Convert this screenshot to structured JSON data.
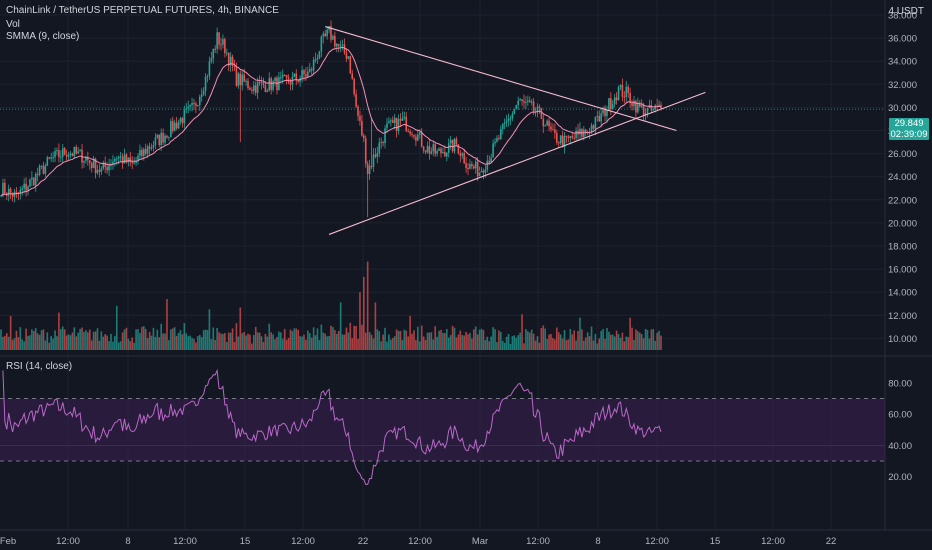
{
  "header": {
    "symbol_title": "ChainLink / TetherUS PERPETUAL FUTURES, 4h, BINANCE",
    "vol_label": "Vol",
    "smma_label": "SMMA (9, close)",
    "currency": "4 USDT",
    "rsi_label": "RSI (14, close)"
  },
  "price_tag": {
    "price": "29.849",
    "countdown": "02:39:09"
  },
  "colors": {
    "background": "#131722",
    "up": "#26a69a",
    "down": "#ef5350",
    "smma": "#f48fb1",
    "trendline": "#f8bbd0",
    "rsi_line": "#ba68c8",
    "rsi_band": "#3b1f52",
    "grid": "#1e222d"
  },
  "chart_data": {
    "type": "candlestick",
    "price_axis": {
      "min": 10,
      "max": 39,
      "ticks": [
        "38.000",
        "36.000",
        "34.000",
        "32.000",
        "30.000",
        "28.000",
        "26.000",
        "24.000",
        "22.000",
        "20.000",
        "18.000",
        "16.000",
        "14.000",
        "12.000",
        "10.000"
      ]
    },
    "time_axis": {
      "ticks": [
        "Feb",
        "12:00",
        "8",
        "12:00",
        "15",
        "12:00",
        "22",
        "12:00",
        "Mar",
        "12:00",
        "8",
        "12:00",
        "15",
        "12:00",
        "22"
      ]
    },
    "price_anchors": [
      [
        0,
        23.0
      ],
      [
        8,
        22.3
      ],
      [
        18,
        24.0
      ],
      [
        26,
        25.5
      ],
      [
        34,
        26.2
      ],
      [
        42,
        25.8
      ],
      [
        52,
        24.5
      ],
      [
        60,
        25.8
      ],
      [
        68,
        25.0
      ],
      [
        76,
        26.5
      ],
      [
        84,
        27.5
      ],
      [
        90,
        28.5
      ],
      [
        100,
        30.0
      ],
      [
        106,
        32.5
      ],
      [
        112,
        36.0
      ],
      [
        116,
        35.2
      ],
      [
        122,
        32.5
      ],
      [
        130,
        31.8
      ],
      [
        140,
        32.0
      ],
      [
        150,
        32.3
      ],
      [
        160,
        33.0
      ],
      [
        166,
        35.5
      ],
      [
        170,
        36.5
      ],
      [
        176,
        35.0
      ],
      [
        180,
        34.5
      ],
      [
        184,
        30.0
      ],
      [
        188,
        27.0
      ],
      [
        190,
        24.5
      ],
      [
        194,
        26.0
      ],
      [
        200,
        28.2
      ],
      [
        208,
        28.8
      ],
      [
        214,
        28.0
      ],
      [
        220,
        26.5
      ],
      [
        226,
        26.0
      ],
      [
        232,
        26.5
      ],
      [
        236,
        26.8
      ],
      [
        242,
        25.0
      ],
      [
        248,
        24.5
      ],
      [
        254,
        26.0
      ],
      [
        260,
        28.0
      ],
      [
        268,
        30.5
      ],
      [
        274,
        30.0
      ],
      [
        280,
        29.2
      ],
      [
        286,
        27.5
      ],
      [
        292,
        27.0
      ],
      [
        298,
        27.5
      ],
      [
        304,
        28.0
      ],
      [
        310,
        29.0
      ],
      [
        316,
        30.5
      ],
      [
        320,
        31.5
      ],
      [
        324,
        31.2
      ],
      [
        330,
        30.0
      ],
      [
        336,
        29.6
      ],
      [
        342,
        30.0
      ]
    ],
    "spikes": [
      {
        "index": 124,
        "low": 27.0
      },
      {
        "index": 190,
        "low": 20.5
      },
      {
        "index": 192,
        "high": 29.0
      },
      {
        "index": 248,
        "low": 24.5
      }
    ],
    "smma": {
      "period": 9
    },
    "volume_spikes": [
      [
        5,
        2.0
      ],
      [
        30,
        2.2
      ],
      [
        60,
        2.6
      ],
      [
        86,
        3.0
      ],
      [
        108,
        2.4
      ],
      [
        124,
        2.5
      ],
      [
        176,
        2.8
      ],
      [
        186,
        3.4
      ],
      [
        188,
        4.3
      ],
      [
        190,
        5.2
      ],
      [
        194,
        2.8
      ],
      [
        212,
        2.0
      ],
      [
        270,
        2.1
      ],
      [
        300,
        1.9
      ],
      [
        326,
        1.9
      ]
    ],
    "trendlines": [
      {
        "name": "upper",
        "from": [
          168,
          37.0
        ],
        "to": [
          350,
          28.0
        ]
      },
      {
        "name": "lower",
        "from": [
          170,
          19.0
        ],
        "to": [
          365,
          31.3
        ]
      }
    ],
    "current_price": 29.849,
    "rsi": {
      "period": 14,
      "axis_ticks": [
        "80.00",
        "60.00",
        "40.00",
        "20.00"
      ],
      "overbought": 70,
      "oversold": 30,
      "midline": 40,
      "range": [
        15,
        88
      ]
    }
  }
}
